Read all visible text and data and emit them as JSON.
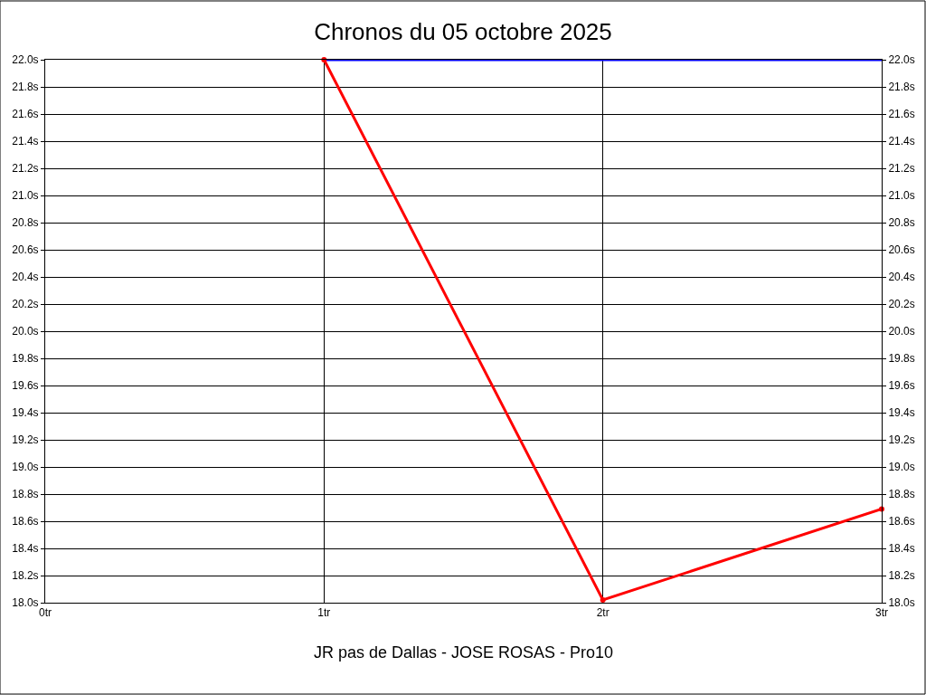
{
  "chart_data": {
    "type": "line",
    "title": "Chronos du 05 octobre 2025",
    "xlabel": "JR pas de Dallas - JOSE ROSAS - Pro10",
    "series": [
      {
        "color": "#0000ff",
        "x": [
          1,
          2,
          3
        ],
        "values": [
          22.0,
          22.0,
          22.0
        ],
        "marker": "none"
      },
      {
        "color": "#ff0000",
        "x": [
          1,
          2,
          3
        ],
        "values": [
          22.0,
          18.02,
          18.69
        ],
        "marker": "circle"
      }
    ],
    "xlim": [
      0,
      3
    ],
    "xticks": [
      {
        "value": 0,
        "label": "0tr"
      },
      {
        "value": 1,
        "label": "1tr"
      },
      {
        "value": 2,
        "label": "2tr"
      },
      {
        "value": 3,
        "label": "3tr"
      }
    ],
    "ylim": [
      18.0,
      22.0
    ],
    "yticks": [
      {
        "value": 18.0,
        "label": "18.0s"
      },
      {
        "value": 18.2,
        "label": "18.2s"
      },
      {
        "value": 18.4,
        "label": "18.4s"
      },
      {
        "value": 18.6,
        "label": "18.6s"
      },
      {
        "value": 18.8,
        "label": "18.8s"
      },
      {
        "value": 19.0,
        "label": "19.0s"
      },
      {
        "value": 19.2,
        "label": "19.2s"
      },
      {
        "value": 19.4,
        "label": "19.4s"
      },
      {
        "value": 19.6,
        "label": "19.6s"
      },
      {
        "value": 19.8,
        "label": "19.8s"
      },
      {
        "value": 20.0,
        "label": "20.0s"
      },
      {
        "value": 20.2,
        "label": "20.2s"
      },
      {
        "value": 20.4,
        "label": "20.4s"
      },
      {
        "value": 20.6,
        "label": "20.6s"
      },
      {
        "value": 20.8,
        "label": "20.8s"
      },
      {
        "value": 21.0,
        "label": "21.0s"
      },
      {
        "value": 21.2,
        "label": "21.2s"
      },
      {
        "value": 21.4,
        "label": "21.4s"
      },
      {
        "value": 21.6,
        "label": "21.6s"
      },
      {
        "value": 21.8,
        "label": "21.8s"
      },
      {
        "value": 22.0,
        "label": "22.0s"
      }
    ],
    "y2lim": [
      18.0,
      22.0
    ],
    "y2ticks": [
      {
        "value": 18.0,
        "label": "18.0s"
      },
      {
        "value": 18.2,
        "label": "18.2s"
      },
      {
        "value": 18.4,
        "label": "18.4s"
      },
      {
        "value": 18.6,
        "label": "18.6s"
      },
      {
        "value": 18.8,
        "label": "18.8s"
      },
      {
        "value": 19.0,
        "label": "19.0s"
      },
      {
        "value": 19.2,
        "label": "19.2s"
      },
      {
        "value": 19.4,
        "label": "19.4s"
      },
      {
        "value": 19.6,
        "label": "19.6s"
      },
      {
        "value": 19.8,
        "label": "19.8s"
      },
      {
        "value": 20.0,
        "label": "20.0s"
      },
      {
        "value": 20.2,
        "label": "20.2s"
      },
      {
        "value": 20.4,
        "label": "20.4s"
      },
      {
        "value": 20.6,
        "label": "20.6s"
      },
      {
        "value": 20.8,
        "label": "20.8s"
      },
      {
        "value": 21.0,
        "label": "21.0s"
      },
      {
        "value": 21.2,
        "label": "21.2s"
      },
      {
        "value": 21.4,
        "label": "21.4s"
      },
      {
        "value": 21.6,
        "label": "21.6s"
      },
      {
        "value": 21.8,
        "label": "21.8s"
      },
      {
        "value": 22.0,
        "label": "22.0s"
      }
    ],
    "grid": true,
    "line_style": "solid"
  }
}
